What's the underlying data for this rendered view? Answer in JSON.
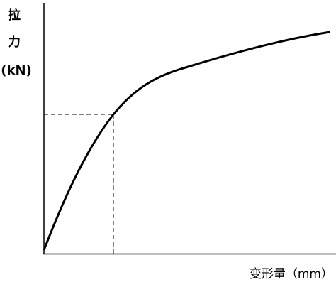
{
  "y_axis_label": {
    "lines": [
      "拉",
      "力",
      "(kN)"
    ]
  },
  "x_axis_label": "变形量（mm）"
}
